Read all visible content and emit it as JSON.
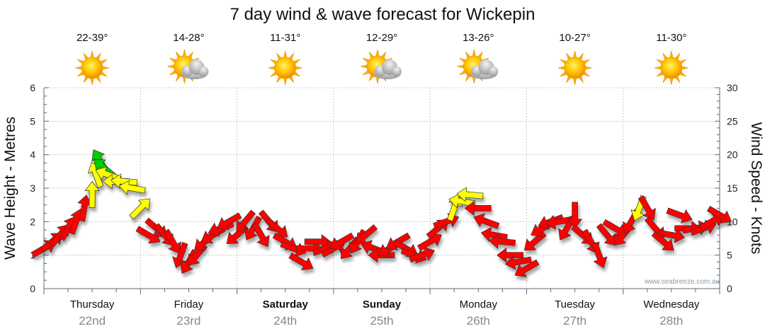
{
  "title": "7 day wind & wave forecast for Wickepin",
  "credit": "www.seabreeze.com.au",
  "days": [
    {
      "label": "Thursday",
      "date": "22nd",
      "bold": false,
      "temp": "22-39°",
      "weather": "sun-icon"
    },
    {
      "label": "Friday",
      "date": "23rd",
      "bold": false,
      "temp": "14-28°",
      "weather": "sun-cloud-icon"
    },
    {
      "label": "Saturday",
      "date": "24th",
      "bold": true,
      "temp": "11-31°",
      "weather": "sun-icon"
    },
    {
      "label": "Sunday",
      "date": "25th",
      "bold": true,
      "temp": "12-29°",
      "weather": "sun-cloud-icon"
    },
    {
      "label": "Monday",
      "date": "26th",
      "bold": false,
      "temp": "13-26°",
      "weather": "sun-cloud-icon"
    },
    {
      "label": "Tuesday",
      "date": "27th",
      "bold": false,
      "temp": "10-27°",
      "weather": "sun-icon"
    },
    {
      "label": "Wednesday",
      "date": "28th",
      "bold": false,
      "temp": "11-30°",
      "weather": "sun-icon"
    }
  ],
  "chart_data": {
    "type": "scatter",
    "title": "7 day wind & wave forecast for Wickepin",
    "y_left_label": "Wave Height - Metres",
    "y_right_label": "Wind Speed - Knots",
    "y_left_range": [
      0,
      6
    ],
    "y_left_ticks": [
      "0",
      "1",
      "2",
      "3",
      "4",
      "5",
      "6"
    ],
    "y_right_range": [
      0,
      30
    ],
    "y_right_ticks": [
      "0",
      "5",
      "10",
      "15",
      "20",
      "25",
      "30"
    ],
    "x_unit": "hours from start of Thursday 22nd",
    "x_range": [
      0,
      168
    ],
    "grid": true,
    "arrow_colors": {
      "red": "#ff0000",
      "yellow": "#ffff00",
      "green": "#00cc00"
    },
    "series": [
      {
        "name": "Wind",
        "points": [
          {
            "x": 0,
            "speed": 6,
            "dir": 240,
            "color": "red"
          },
          {
            "x": 2,
            "speed": 7,
            "dir": 230,
            "color": "red"
          },
          {
            "x": 4,
            "speed": 8,
            "dir": 220,
            "color": "red"
          },
          {
            "x": 6,
            "speed": 9,
            "dir": 210,
            "color": "red"
          },
          {
            "x": 8,
            "speed": 10,
            "dir": 200,
            "color": "red"
          },
          {
            "x": 10,
            "speed": 12,
            "dir": 190,
            "color": "red"
          },
          {
            "x": 12,
            "speed": 14,
            "dir": 180,
            "color": "yellow"
          },
          {
            "x": 13,
            "speed": 17,
            "dir": 160,
            "color": "yellow"
          },
          {
            "x": 14,
            "speed": 19,
            "dir": 150,
            "color": "green"
          },
          {
            "x": 15,
            "speed": 18,
            "dir": 130,
            "color": "green"
          },
          {
            "x": 16,
            "speed": 17,
            "dir": 110,
            "color": "yellow"
          },
          {
            "x": 18,
            "speed": 16,
            "dir": 90,
            "color": "yellow"
          },
          {
            "x": 20,
            "speed": 16,
            "dir": 95,
            "color": "yellow"
          },
          {
            "x": 22,
            "speed": 15,
            "dir": 100,
            "color": "yellow"
          },
          {
            "x": 24,
            "speed": 12,
            "dir": 225,
            "color": "yellow"
          },
          {
            "x": 26,
            "speed": 8,
            "dir": 300,
            "color": "red"
          },
          {
            "x": 28,
            "speed": 9,
            "dir": 310,
            "color": "red"
          },
          {
            "x": 30,
            "speed": 8,
            "dir": 320,
            "color": "red"
          },
          {
            "x": 32,
            "speed": 7,
            "dir": 330,
            "color": "red"
          },
          {
            "x": 34,
            "speed": 5,
            "dir": 20,
            "color": "red"
          },
          {
            "x": 36,
            "speed": 4,
            "dir": 30,
            "color": "red"
          },
          {
            "x": 38,
            "speed": 5,
            "dir": 40,
            "color": "red"
          },
          {
            "x": 40,
            "speed": 7,
            "dir": 50,
            "color": "red"
          },
          {
            "x": 42,
            "speed": 8,
            "dir": 60,
            "color": "red"
          },
          {
            "x": 44,
            "speed": 9,
            "dir": 70,
            "color": "red"
          },
          {
            "x": 46,
            "speed": 10,
            "dir": 60,
            "color": "red"
          },
          {
            "x": 48,
            "speed": 8,
            "dir": 50,
            "color": "red"
          },
          {
            "x": 50,
            "speed": 10,
            "dir": 40,
            "color": "red"
          },
          {
            "x": 52,
            "speed": 9,
            "dir": 30,
            "color": "red"
          },
          {
            "x": 54,
            "speed": 8,
            "dir": 330,
            "color": "red"
          },
          {
            "x": 56,
            "speed": 10,
            "dir": 320,
            "color": "red"
          },
          {
            "x": 58,
            "speed": 9,
            "dir": 310,
            "color": "red"
          },
          {
            "x": 60,
            "speed": 7,
            "dir": 300,
            "color": "red"
          },
          {
            "x": 62,
            "speed": 6,
            "dir": 290,
            "color": "red"
          },
          {
            "x": 64,
            "speed": 4,
            "dir": 300,
            "color": "red"
          },
          {
            "x": 66,
            "speed": 6,
            "dir": 270,
            "color": "red"
          },
          {
            "x": 68,
            "speed": 7,
            "dir": 270,
            "color": "red"
          },
          {
            "x": 70,
            "speed": 6,
            "dir": 250,
            "color": "red"
          },
          {
            "x": 72,
            "speed": 6,
            "dir": 240,
            "color": "red"
          },
          {
            "x": 74,
            "speed": 7,
            "dir": 60,
            "color": "red"
          },
          {
            "x": 76,
            "speed": 6,
            "dir": 40,
            "color": "red"
          },
          {
            "x": 78,
            "speed": 7,
            "dir": 30,
            "color": "red"
          },
          {
            "x": 80,
            "speed": 8,
            "dir": 50,
            "color": "red"
          },
          {
            "x": 82,
            "speed": 6,
            "dir": 110,
            "color": "red"
          },
          {
            "x": 84,
            "speed": 5,
            "dir": 90,
            "color": "red"
          },
          {
            "x": 86,
            "speed": 6,
            "dir": 60,
            "color": "red"
          },
          {
            "x": 88,
            "speed": 7,
            "dir": 60,
            "color": "red"
          },
          {
            "x": 90,
            "speed": 6,
            "dir": 300,
            "color": "red"
          },
          {
            "x": 92,
            "speed": 5,
            "dir": 290,
            "color": "red"
          },
          {
            "x": 94,
            "speed": 5,
            "dir": 250,
            "color": "red"
          },
          {
            "x": 96,
            "speed": 7,
            "dir": 240,
            "color": "red"
          },
          {
            "x": 98,
            "speed": 9,
            "dir": 230,
            "color": "red"
          },
          {
            "x": 100,
            "speed": 10,
            "dir": 250,
            "color": "red"
          },
          {
            "x": 102,
            "speed": 12,
            "dir": 200,
            "color": "yellow"
          },
          {
            "x": 104,
            "speed": 13,
            "dir": 100,
            "color": "yellow"
          },
          {
            "x": 106,
            "speed": 14,
            "dir": 95,
            "color": "yellow"
          },
          {
            "x": 108,
            "speed": 12,
            "dir": 90,
            "color": "red"
          },
          {
            "x": 110,
            "speed": 10,
            "dir": 110,
            "color": "red"
          },
          {
            "x": 112,
            "speed": 8,
            "dir": 100,
            "color": "red"
          },
          {
            "x": 114,
            "speed": 7,
            "dir": 95,
            "color": "red"
          },
          {
            "x": 116,
            "speed": 5,
            "dir": 90,
            "color": "red"
          },
          {
            "x": 118,
            "speed": 4,
            "dir": 80,
            "color": "red"
          },
          {
            "x": 120,
            "speed": 3,
            "dir": 60,
            "color": "red"
          },
          {
            "x": 122,
            "speed": 7,
            "dir": 50,
            "color": "red"
          },
          {
            "x": 124,
            "speed": 9,
            "dir": 60,
            "color": "red"
          },
          {
            "x": 126,
            "speed": 10,
            "dir": 70,
            "color": "red"
          },
          {
            "x": 128,
            "speed": 10,
            "dir": 80,
            "color": "red"
          },
          {
            "x": 130,
            "speed": 9,
            "dir": 30,
            "color": "red"
          },
          {
            "x": 132,
            "speed": 11,
            "dir": 360,
            "color": "red"
          },
          {
            "x": 134,
            "speed": 8,
            "dir": 310,
            "color": "red"
          },
          {
            "x": 136,
            "speed": 7,
            "dir": 330,
            "color": "red"
          },
          {
            "x": 138,
            "speed": 5,
            "dir": 340,
            "color": "red"
          },
          {
            "x": 140,
            "speed": 8,
            "dir": 320,
            "color": "red"
          },
          {
            "x": 142,
            "speed": 9,
            "dir": 300,
            "color": "red"
          },
          {
            "x": 144,
            "speed": 8,
            "dir": 40,
            "color": "red"
          },
          {
            "x": 146,
            "speed": 10,
            "dir": 30,
            "color": "red"
          },
          {
            "x": 148,
            "speed": 12,
            "dir": 20,
            "color": "yellow"
          },
          {
            "x": 150,
            "speed": 12,
            "dir": 330,
            "color": "red"
          },
          {
            "x": 152,
            "speed": 9,
            "dir": 320,
            "color": "red"
          },
          {
            "x": 154,
            "speed": 7,
            "dir": 310,
            "color": "red"
          },
          {
            "x": 156,
            "speed": 8,
            "dir": 280,
            "color": "red"
          },
          {
            "x": 158,
            "speed": 11,
            "dir": 290,
            "color": "red"
          },
          {
            "x": 160,
            "speed": 9,
            "dir": 270,
            "color": "red"
          },
          {
            "x": 162,
            "speed": 9,
            "dir": 260,
            "color": "red"
          },
          {
            "x": 164,
            "speed": 9,
            "dir": 250,
            "color": "red"
          },
          {
            "x": 166,
            "speed": 10,
            "dir": 240,
            "color": "red"
          },
          {
            "x": 168,
            "speed": 11,
            "dir": 300,
            "color": "red"
          }
        ]
      }
    ]
  }
}
